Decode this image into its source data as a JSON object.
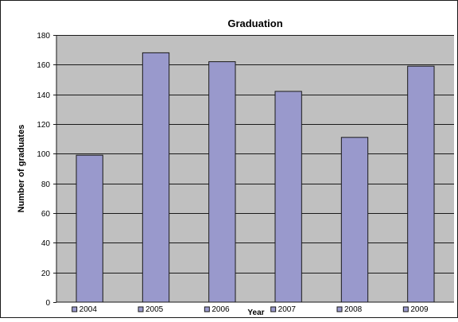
{
  "colors": {
    "background": "#ffffff",
    "plot_area": "#c0c0c0",
    "bar_fill": "#9999cc",
    "bar_stroke": "#1a1a1a",
    "gridline": "#1a1a1a",
    "border": "#1a1a1a"
  },
  "chart_data": {
    "type": "bar",
    "title": "Graduation",
    "xlabel": "Year",
    "ylabel": "Number of graduates",
    "categories": [
      "2004",
      "2005",
      "2006",
      "2007",
      "2008",
      "2009"
    ],
    "values": [
      99,
      168,
      162,
      142,
      111,
      159
    ],
    "ylim": [
      0,
      180
    ],
    "yticks": [
      0,
      20,
      40,
      60,
      80,
      100,
      120,
      140,
      160,
      180
    ],
    "grid": true,
    "legend": "none",
    "category_marker": "square"
  }
}
